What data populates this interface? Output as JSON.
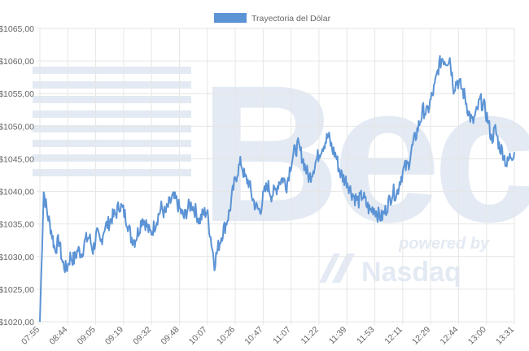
{
  "colors": {
    "series": "#5b93d5",
    "watermark": "#e3eaf3",
    "grid": "#e6e6e6"
  },
  "watermark": {
    "logo_text": "Bec",
    "tagline": "powered by",
    "brand": "Nasdaq"
  },
  "chart_data": {
    "type": "line",
    "legend": {
      "position": "top-center"
    },
    "grid": true,
    "series": [
      {
        "name": "Trayectoria del Dólar",
        "color": "#5b93d5",
        "values": [
          1020.0,
          1040.0,
          1036.5,
          1034.0,
          1031.0,
          1032.5,
          1029.0,
          1028.0,
          1030.0,
          1029.5,
          1031.0,
          1030.5,
          1032.5,
          1033.0,
          1031.0,
          1033.5,
          1032.0,
          1034.5,
          1035.0,
          1036.0,
          1036.5,
          1038.0,
          1037.0,
          1035.5,
          1033.0,
          1032.5,
          1034.0,
          1036.0,
          1035.0,
          1033.5,
          1034.5,
          1036.0,
          1037.5,
          1036.5,
          1038.0,
          1039.0,
          1038.5,
          1037.0,
          1036.0,
          1037.5,
          1038.0,
          1037.0,
          1035.5,
          1036.5,
          1037.0,
          1033.0,
          1029.0,
          1031.5,
          1033.5,
          1035.0,
          1037.0,
          1040.5,
          1043.0,
          1044.5,
          1042.0,
          1041.5,
          1039.0,
          1037.5,
          1037.0,
          1039.5,
          1041.0,
          1039.5,
          1040.0,
          1041.5,
          1042.0,
          1041.0,
          1044.0,
          1046.0,
          1047.0,
          1045.5,
          1043.5,
          1042.0,
          1043.5,
          1045.0,
          1046.5,
          1047.5,
          1048.5,
          1046.5,
          1045.5,
          1043.0,
          1042.0,
          1041.5,
          1040.0,
          1039.0,
          1038.5,
          1039.5,
          1038.0,
          1037.0,
          1037.5,
          1036.5,
          1036.0,
          1037.0,
          1038.5,
          1040.0,
          1039.5,
          1042.0,
          1043.5,
          1044.0,
          1046.5,
          1048.5,
          1050.5,
          1052.5,
          1052.0,
          1054.0,
          1056.0,
          1059.0,
          1060.5,
          1060.0,
          1060.5,
          1056.0,
          1057.0,
          1056.0,
          1054.5,
          1052.0,
          1050.5,
          1052.0,
          1054.0,
          1053.0,
          1051.0,
          1048.0,
          1049.5,
          1047.0,
          1046.0,
          1044.0,
          1045.5,
          1046.0
        ]
      }
    ],
    "x_labels": [
      "07:55",
      "08:44",
      "09:05",
      "09:19",
      "09:32",
      "09:48",
      "10:07",
      "10:26",
      "10:47",
      "11:07",
      "11:22",
      "11:39",
      "11:53",
      "12:11",
      "12:29",
      "12:44",
      "13:00",
      "13:31"
    ],
    "y_ticks": [
      "$1020,00",
      "$1025,00",
      "$1030,00",
      "$1035,00",
      "$1040,00",
      "$1045,00",
      "$1050,00",
      "$1055,00",
      "$1060,00",
      "$1065,00"
    ],
    "ylim": [
      1020,
      1065
    ]
  }
}
